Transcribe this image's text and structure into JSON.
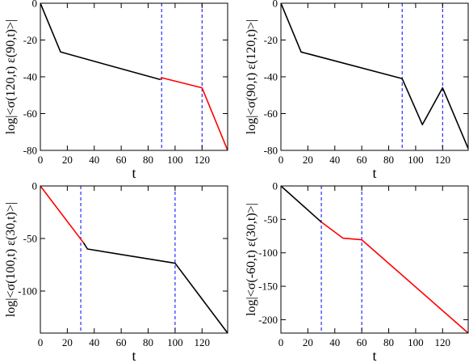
{
  "chart_data": [
    {
      "type": "line",
      "xlabel": "t",
      "ylabel": "log|<σ(120,t) ε(90,t)>|",
      "xlim": [
        0,
        139
      ],
      "ylim": [
        -80,
        0
      ],
      "xticks": [
        0,
        20,
        40,
        60,
        80,
        100,
        120
      ],
      "yticks": [
        0,
        -20,
        -40,
        -60,
        -80
      ],
      "xtick_labels": [
        "0",
        "20",
        "40",
        "60",
        "80",
        "100",
        "120"
      ],
      "ytick_labels": [
        "0",
        "-20",
        "-40",
        "-60",
        "-80"
      ],
      "vlines": [
        90,
        120
      ],
      "vline_color": "#0000ff",
      "series": [
        {
          "color": "#000000",
          "x": [
            0,
            15,
            89
          ],
          "y": [
            0,
            -26.5,
            -41.5
          ]
        },
        {
          "color": "#ff0000",
          "x": [
            89,
            90,
            120,
            139
          ],
          "y": [
            -41.5,
            -40.5,
            -46,
            -80
          ]
        }
      ]
    },
    {
      "type": "line",
      "xlabel": "t",
      "ylabel": "log|<σ(90,t) ε(120,t)>|",
      "xlim": [
        0,
        139
      ],
      "ylim": [
        -80,
        0
      ],
      "xticks": [
        0,
        20,
        40,
        60,
        80,
        100,
        120
      ],
      "yticks": [
        0,
        -20,
        -40,
        -60,
        -80
      ],
      "xtick_labels": [
        "0",
        "20",
        "40",
        "60",
        "80",
        "100",
        "120"
      ],
      "ytick_labels": [
        "0",
        "-20",
        "-40",
        "-60",
        "-80"
      ],
      "vlines": [
        90,
        120
      ],
      "vline_color": "#0000ff",
      "series": [
        {
          "color": "#000000",
          "x": [
            0,
            15,
            90,
            105,
            120,
            139
          ],
          "y": [
            0,
            -26.5,
            -41,
            -66,
            -46,
            -79
          ]
        }
      ]
    },
    {
      "type": "line",
      "xlabel": "t",
      "ylabel": "log|<σ(100,t) ε(30,t)>|",
      "xlim": [
        0,
        139
      ],
      "ylim": [
        -140,
        0
      ],
      "xticks": [
        0,
        20,
        40,
        60,
        80,
        100,
        120
      ],
      "yticks": [
        0,
        -50,
        -100
      ],
      "xtick_labels": [
        "0",
        "20",
        "40",
        "60",
        "80",
        "100",
        "120"
      ],
      "ytick_labels": [
        "0",
        "-50",
        "-100"
      ],
      "vlines": [
        30,
        100
      ],
      "vline_color": "#0000ff",
      "series": [
        {
          "color": "#ff0000",
          "x": [
            0,
            32
          ],
          "y": [
            0,
            -54
          ]
        },
        {
          "color": "#000000",
          "x": [
            32,
            35,
            100,
            139
          ],
          "y": [
            -54,
            -60,
            -73.5,
            -140
          ]
        }
      ]
    },
    {
      "type": "line",
      "xlabel": "t",
      "ylabel": "log|<σ(-60,t) ε(30,t)>|",
      "xlim": [
        0,
        139
      ],
      "ylim": [
        -220,
        0
      ],
      "xticks": [
        0,
        20,
        40,
        60,
        80,
        100,
        120
      ],
      "yticks": [
        0,
        -50,
        -100,
        -150,
        -200
      ],
      "xtick_labels": [
        "0",
        "20",
        "40",
        "60",
        "80",
        "100",
        "120"
      ],
      "ytick_labels": [
        "0",
        "-50",
        "-100",
        "-150",
        "-200"
      ],
      "vlines": [
        30,
        60
      ],
      "vline_color": "#0000ff",
      "series": [
        {
          "color": "#000000",
          "x": [
            0,
            30
          ],
          "y": [
            0,
            -54
          ]
        },
        {
          "color": "#ff0000",
          "x": [
            30,
            46,
            60,
            139
          ],
          "y": [
            -54,
            -78,
            -80.5,
            -220
          ]
        }
      ]
    }
  ]
}
